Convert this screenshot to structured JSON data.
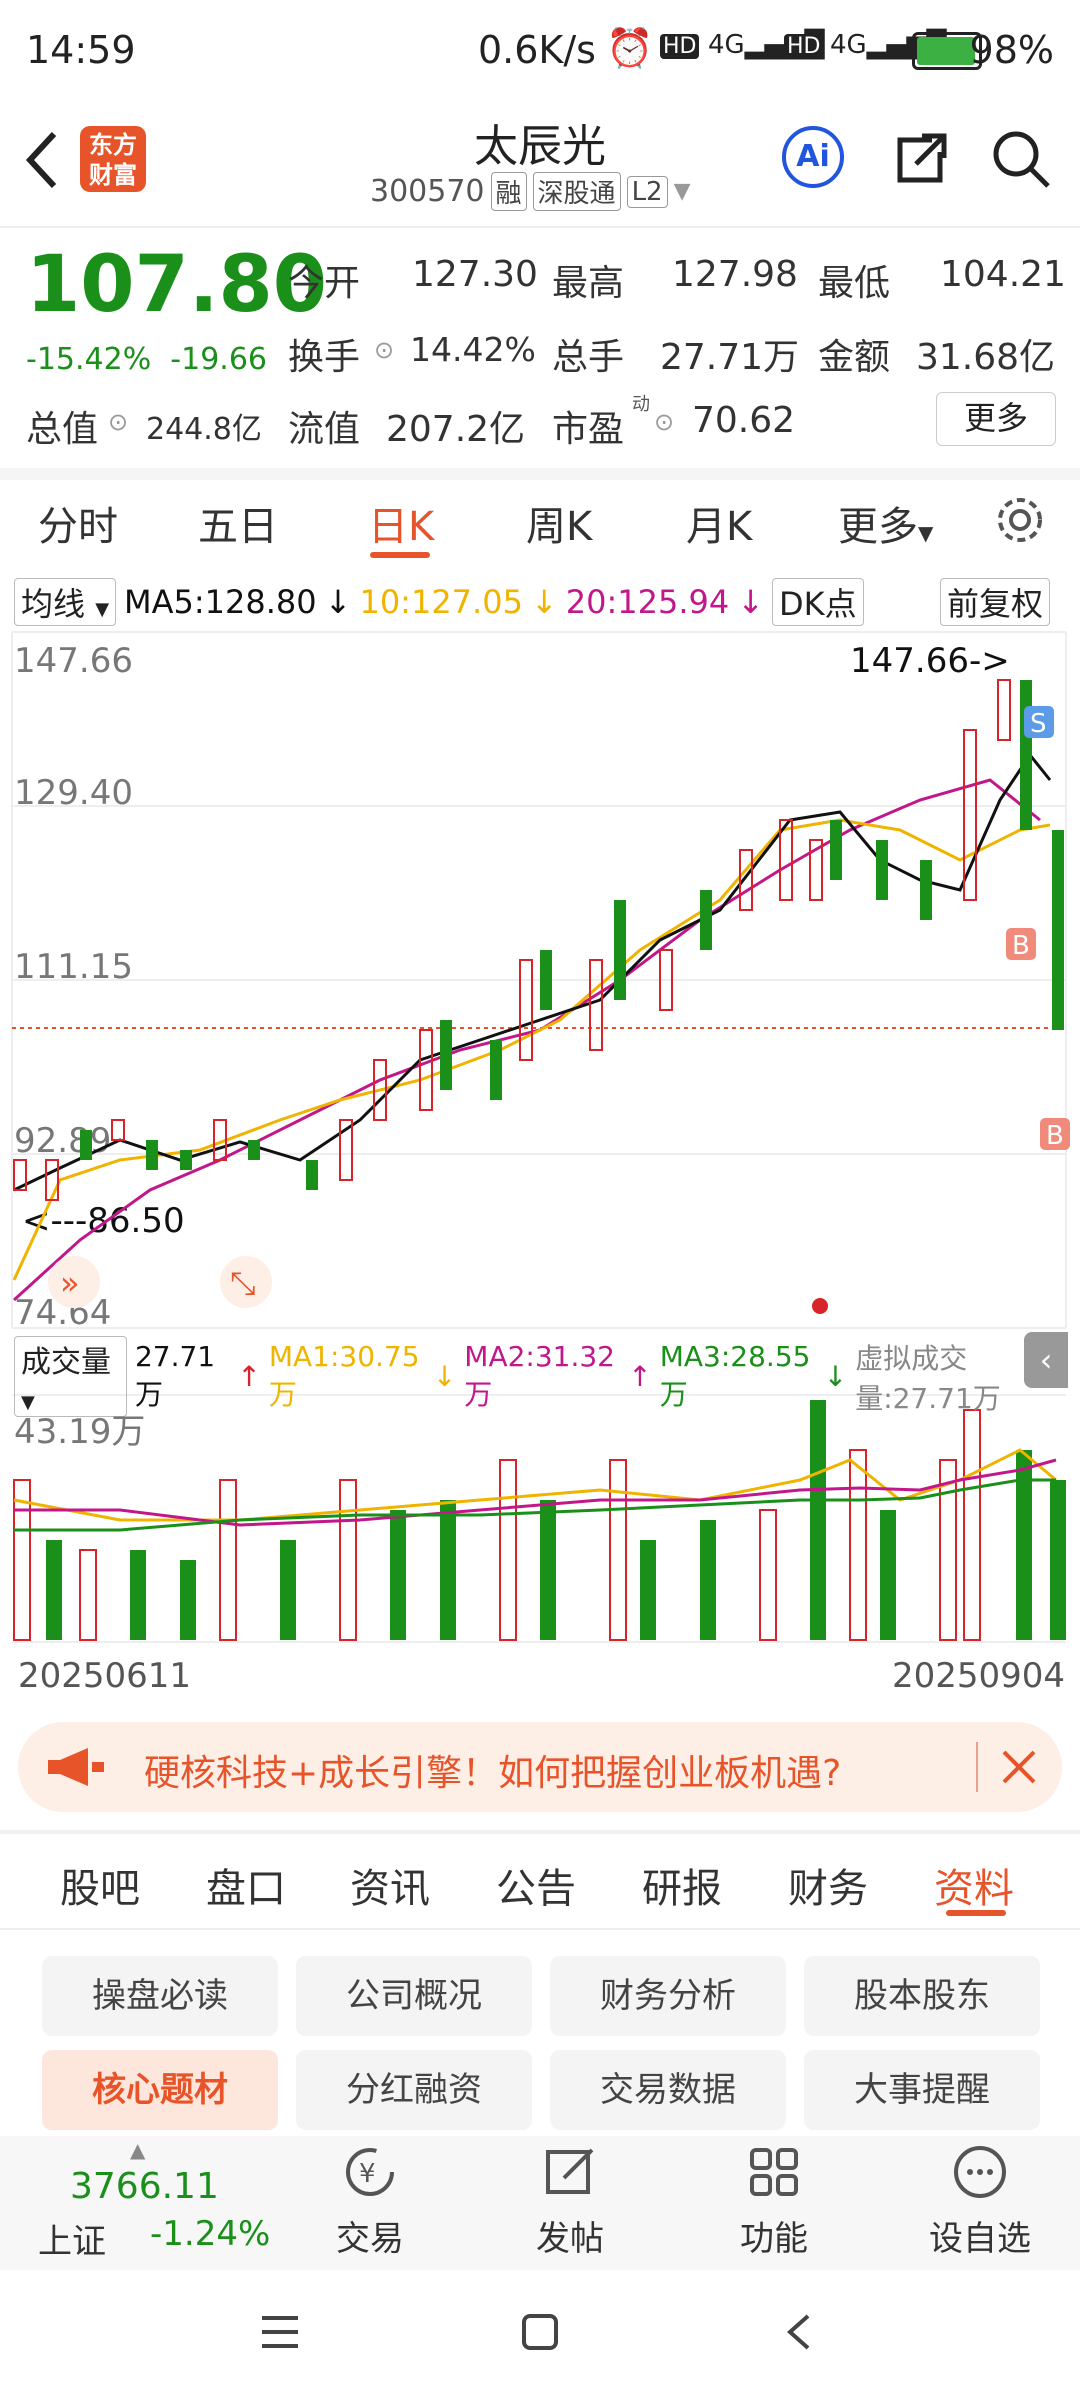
{
  "status": {
    "time": "14:59",
    "speed": "0.6K/s",
    "battery": "98%"
  },
  "header": {
    "logo_line1": "东方",
    "logo_line2": "财富",
    "title": "太辰光",
    "code": "300570",
    "tags": [
      "融",
      "深股通",
      "L2"
    ],
    "ai_label": "Ai"
  },
  "quote": {
    "price": "107.80",
    "change_pct": "-15.42%",
    "change": "-19.66",
    "open_label": "今开",
    "open": "127.30",
    "high_label": "最高",
    "high": "127.98",
    "low_label": "最低",
    "low": "104.21",
    "turnover_label": "换手",
    "turnover": "14.42%",
    "volume_label": "总手",
    "volume": "27.71万",
    "amount_label": "金额",
    "amount": "31.68亿",
    "mktcap_label": "总值",
    "mktcap": "244.8亿",
    "float_label": "流值",
    "float": "207.2亿",
    "pe_label": "市盈",
    "pe_sup": "动",
    "pe": "70.62",
    "more": "更多"
  },
  "ktabs": [
    "分时",
    "五日",
    "日K",
    "周K",
    "月K",
    "更多"
  ],
  "ma_row": {
    "type": "均线",
    "ma5": "MA5:128.80",
    "ma10": "10:127.05",
    "ma20": "20:125.94",
    "dk": "DK点",
    "adjust": "前复权"
  },
  "chart_labels": {
    "y1": "147.66",
    "y2": "129.40",
    "y3": "111.15",
    "y4": "92.89",
    "y5": "74.64",
    "max_note": "147.66->",
    "min_note": "<---86.50",
    "buy": "B",
    "sell": "S"
  },
  "vol_row": {
    "type": "成交量",
    "vol": "27.71万",
    "ma1": "MA1:30.75万",
    "ma2": "MA2:31.32万",
    "ma3": "MA3:28.55万",
    "virtual": "虚拟成交量:27.71万",
    "max": "43.19万"
  },
  "dates": {
    "start": "20250611",
    "end": "20250904"
  },
  "banner": {
    "text": "硬核科技+成长引擎！如何把握创业板机遇?"
  },
  "info_tabs": [
    "股吧",
    "盘口",
    "资讯",
    "公告",
    "研报",
    "财务",
    "资料"
  ],
  "grid": [
    "操盘必读",
    "公司概况",
    "财务分析",
    "股本股东",
    "核心题材",
    "分红融资",
    "交易数据",
    "大事提醒"
  ],
  "bottom": {
    "index_value": "3766.11",
    "index_name": "上证",
    "index_chg": "-1.24%",
    "trade": "交易",
    "post": "发帖",
    "func": "功能",
    "watch": "设自选"
  },
  "colors": {
    "accent": "#e8542a",
    "up": "#d9232a",
    "down": "#1a8f1a",
    "ma5": "#111111",
    "ma10": "#f0b400",
    "ma20": "#c2178a"
  }
}
